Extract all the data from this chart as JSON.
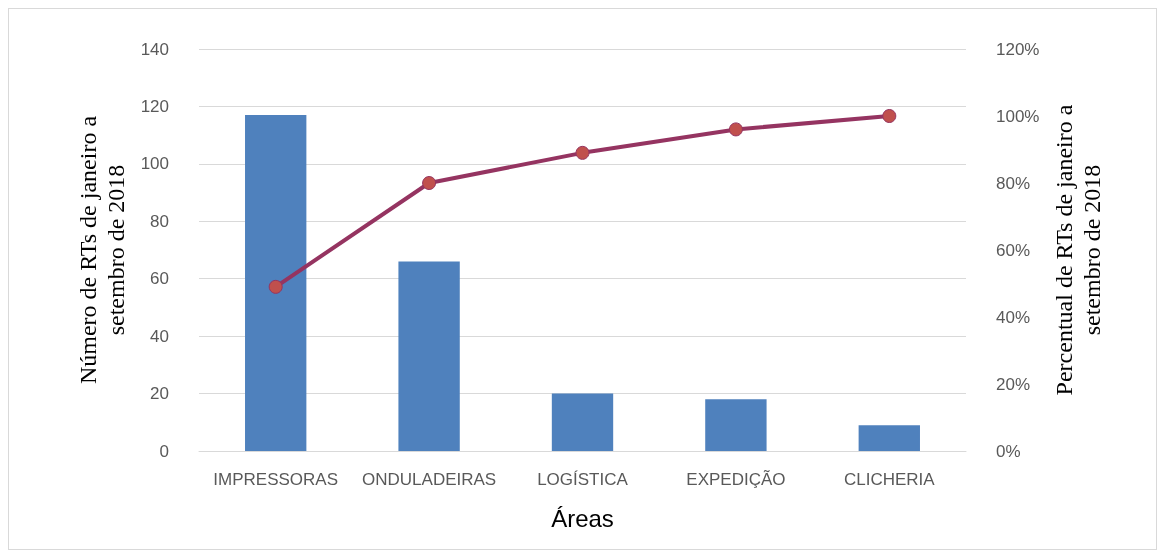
{
  "chart_data": {
    "type": "bar",
    "xlabel": "Áreas",
    "ylabel": "Número de RTs de janeiro a setembro de 2018",
    "y2label": "Percentual de RTs de janeiro a setembro de 2018",
    "categories": [
      "IMPRESSORAS",
      "ONDULADEIRAS",
      "LOGÍSTICA",
      "EXPEDIÇÃO",
      "CLICHERIA"
    ],
    "series": [
      {
        "color": "#4f81bd",
        "values": [
          117,
          66,
          20,
          18,
          9
        ]
      },
      {
        "type": "line",
        "axis": "y2",
        "color": "#953461",
        "marker": "circle",
        "values": [
          49,
          80,
          89,
          96,
          100
        ]
      }
    ],
    "ylim": [
      0,
      140
    ],
    "yticks": [
      0,
      20,
      40,
      60,
      80,
      100,
      120,
      140
    ],
    "y2lim": [
      0,
      120
    ],
    "y2ticks": [
      {
        "value": 0,
        "label": "0%"
      },
      {
        "value": 20,
        "label": "20%"
      },
      {
        "value": 40,
        "label": "40%"
      },
      {
        "value": 60,
        "label": "60%"
      },
      {
        "value": 80,
        "label": "80%"
      },
      {
        "value": 100,
        "label": "100%"
      },
      {
        "value": 120,
        "label": "120%"
      }
    ],
    "grid": "y"
  }
}
